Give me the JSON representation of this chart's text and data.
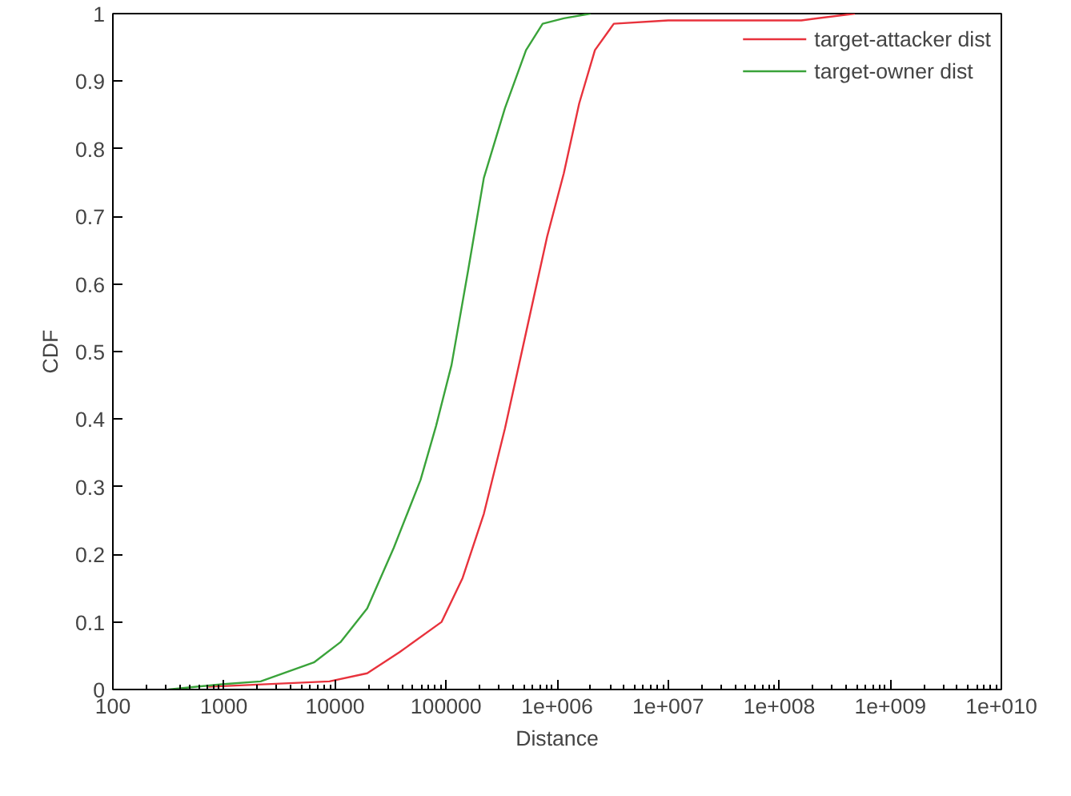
{
  "chart_data": {
    "type": "line",
    "xlabel": "Distance",
    "ylabel": "CDF",
    "log": "x",
    "grid": false,
    "legend": "top right",
    "line_style": "solid",
    "xlim": [
      100,
      10000000000
    ],
    "ylim": [
      0,
      1
    ],
    "xticks": [
      100,
      1000,
      10000,
      100000,
      {
        "value": 1000000,
        "label": "1e+006"
      },
      {
        "value": 10000000,
        "label": "1e+007"
      },
      {
        "value": 100000000,
        "label": "1e+008"
      },
      {
        "value": 1000000000,
        "label": "1e+009"
      },
      {
        "value": 10000000000,
        "label": "1e+010"
      }
    ],
    "yticks": [
      0,
      0.1,
      0.2,
      0.3,
      0.4,
      0.5,
      0.6,
      0.7,
      0.8,
      0.9,
      1
    ],
    "series": [
      {
        "name": "target-attacker dist",
        "color": "#e8323c",
        "x": [
          724,
          8910,
          19500,
          38000,
          91200,
          141000,
          219000,
          339000,
          525000,
          813000,
          1150000,
          1580000,
          2190000,
          3240000,
          10000000,
          158000000,
          480000000
        ],
        "values": [
          0.004,
          0.012,
          0.024,
          0.055,
          0.1,
          0.165,
          0.26,
          0.386,
          0.528,
          0.67,
          0.764,
          0.867,
          0.946,
          0.985,
          0.99,
          0.99,
          1.0
        ]
      },
      {
        "name": "target-owner dist",
        "color": "#3aa33a",
        "x": [
          316,
          1000,
          2140,
          6460,
          11200,
          19500,
          33900,
          58900,
          81300,
          112000,
          158000,
          219000,
          339000,
          525000,
          741000,
          1150000,
          2000000
        ],
        "values": [
          0.0,
          0.008,
          0.012,
          0.04,
          0.07,
          0.12,
          0.21,
          0.31,
          0.39,
          0.48,
          0.62,
          0.757,
          0.86,
          0.946,
          0.985,
          0.993,
          1.0
        ]
      }
    ]
  }
}
